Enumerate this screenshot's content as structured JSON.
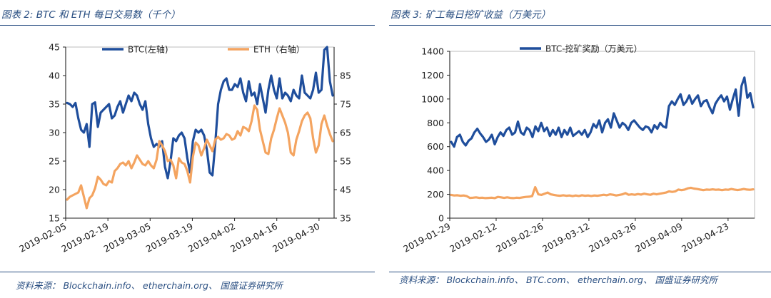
{
  "figures": [
    {
      "title": "图表 2:  BTC 和 ETH 每日交易数（千个）",
      "source": "资料来源： Blockchain.info、 etherchain.org、 国盛证券研究所"
    },
    {
      "title": "图表 3:  矿工每日挖矿收益（万美元）",
      "source": "资料来源： Blockchain.info、 BTC.com、 etherchain.org、 国盛证券研究所"
    }
  ],
  "chart_data": [
    {
      "type": "line",
      "title": "",
      "x_tick_labels": [
        "2019-02-05",
        "2019-02-19",
        "2019-03-05",
        "2019-03-19",
        "2019-04-02",
        "2019-04-16",
        "2019-04-30"
      ],
      "x_start": "2019-02-05",
      "x_end": "2019-05-05",
      "ylim_left": [
        15,
        45
      ],
      "yticks_left": [
        15,
        20,
        25,
        30,
        35,
        40,
        45
      ],
      "ylim_right": [
        35,
        95
      ],
      "yticks_right": [
        35,
        45,
        55,
        65,
        75,
        85
      ],
      "grid": false,
      "legend_position": "top",
      "series": [
        {
          "name": "BTC(左轴)",
          "axis": "left",
          "color": "#1f4e9c",
          "values": [
            35.2,
            35.0,
            34.5,
            35.2,
            32.5,
            30.5,
            30.0,
            31.5,
            27.5,
            35.0,
            35.3,
            31.0,
            33.5,
            34.0,
            34.5,
            35.0,
            32.5,
            33.0,
            34.5,
            35.5,
            33.5,
            35.0,
            36.5,
            35.5,
            37.0,
            36.5,
            35.0,
            34.0,
            35.5,
            31.5,
            29.0,
            27.5,
            28.0,
            27.5,
            28.5,
            24.0,
            22.0,
            25.0,
            29.0,
            28.5,
            29.5,
            30.0,
            29.0,
            25.5,
            23.0,
            28.5,
            30.5,
            30.0,
            30.5,
            29.5,
            27.0,
            23.0,
            22.5,
            28.0,
            35.0,
            37.5,
            39.0,
            39.5,
            37.5,
            37.5,
            38.5,
            38.0,
            39.5,
            37.0,
            35.5,
            39.0,
            36.5,
            37.0,
            35.0,
            38.5,
            36.0,
            33.5,
            37.5,
            40.0,
            37.5,
            36.0,
            39.5,
            36.0,
            37.0,
            36.5,
            35.5,
            37.5,
            36.5,
            36.0,
            40.0,
            37.0,
            36.5,
            36.0,
            37.5,
            40.5,
            37.0,
            37.5,
            44.5,
            45.0,
            39.0,
            36.5
          ]
        },
        {
          "name": "ETH（右轴）",
          "axis": "right",
          "color": "#f4a460",
          "values": [
            41.5,
            42.5,
            43.0,
            43.5,
            44.0,
            46.5,
            42.5,
            38.5,
            42.0,
            43.0,
            45.5,
            49.5,
            48.5,
            47.0,
            46.5,
            48.0,
            47.5,
            51.5,
            52.5,
            54.0,
            54.5,
            53.5,
            55.0,
            52.5,
            54.5,
            57.0,
            55.5,
            54.0,
            53.5,
            55.0,
            53.5,
            52.5,
            55.5,
            62.0,
            60.5,
            58.5,
            55.0,
            55.5,
            53.5,
            49.0,
            56.0,
            54.5,
            54.0,
            51.5,
            47.5,
            56.5,
            61.5,
            60.5,
            57.0,
            59.5,
            62.5,
            60.5,
            58.5,
            62.5,
            63.5,
            62.5,
            63.0,
            64.5,
            64.0,
            62.5,
            63.0,
            65.5,
            64.0,
            67.0,
            66.5,
            65.5,
            69.0,
            74.5,
            73.0,
            66.0,
            62.0,
            58.0,
            57.5,
            63.0,
            66.0,
            70.0,
            73.5,
            71.0,
            68.5,
            65.0,
            58.0,
            57.0,
            62.5,
            65.5,
            69.0,
            71.0,
            72.0,
            70.0,
            63.0,
            58.0,
            60.5,
            68.0,
            71.0,
            67.5,
            64.5,
            62.0
          ]
        }
      ]
    },
    {
      "type": "line",
      "title": "",
      "x_tick_labels": [
        "2019-01-29",
        "2019-02-12",
        "2019-02-26",
        "2019-03-12",
        "2019-03-26",
        "2019-04-09",
        "2019-04-23"
      ],
      "x_start": "2019-01-29",
      "x_end": "2019-05-01",
      "ylim": [
        0,
        1400
      ],
      "yticks": [
        0,
        200,
        400,
        600,
        800,
        1000,
        1200,
        1400
      ],
      "grid": false,
      "legend_position": "top",
      "series": [
        {
          "name": "BTC-挖矿奖励（万美元）",
          "color": "#1f4e9c",
          "values": [
            640,
            600,
            680,
            700,
            640,
            610,
            650,
            670,
            720,
            750,
            710,
            680,
            640,
            660,
            700,
            620,
            680,
            720,
            690,
            740,
            760,
            700,
            720,
            810,
            720,
            700,
            760,
            740,
            680,
            770,
            730,
            800,
            730,
            760,
            690,
            740,
            700,
            760,
            680,
            740,
            700,
            760,
            690,
            710,
            730,
            700,
            740,
            680,
            720,
            790,
            760,
            820,
            720,
            800,
            830,
            760,
            880,
            820,
            760,
            800,
            780,
            740,
            800,
            820,
            790,
            760,
            740,
            770,
            760,
            720,
            780,
            750,
            800,
            770,
            760,
            940,
            980,
            950,
            1000,
            1040,
            950,
            980,
            1030,
            960,
            1000,
            1030,
            940,
            980,
            990,
            930,
            880,
            960,
            1000,
            1030,
            980,
            1020,
            910,
            1000,
            1080,
            860,
            1110,
            1180,
            1010,
            1050,
            930
          ]
        },
        {
          "name": "",
          "color": "#f4a460",
          "values": [
            195,
            190,
            192,
            188,
            190,
            185,
            170,
            172,
            175,
            170,
            172,
            168,
            170,
            172,
            168,
            178,
            175,
            170,
            175,
            170,
            168,
            172,
            170,
            175,
            178,
            180,
            185,
            260,
            200,
            195,
            205,
            215,
            200,
            195,
            190,
            188,
            192,
            188,
            190,
            185,
            190,
            186,
            192,
            188,
            190,
            186,
            190,
            188,
            192,
            196,
            192,
            200,
            196,
            190,
            195,
            200,
            210,
            196,
            200,
            196,
            202,
            198,
            205,
            200,
            196,
            205,
            200,
            205,
            210,
            215,
            225,
            220,
            225,
            240,
            235,
            240,
            250,
            255,
            248,
            245,
            240,
            235,
            240,
            238,
            242,
            238,
            240,
            235,
            240,
            238,
            245,
            240,
            236,
            240,
            245,
            240,
            238,
            242
          ]
        }
      ]
    }
  ]
}
